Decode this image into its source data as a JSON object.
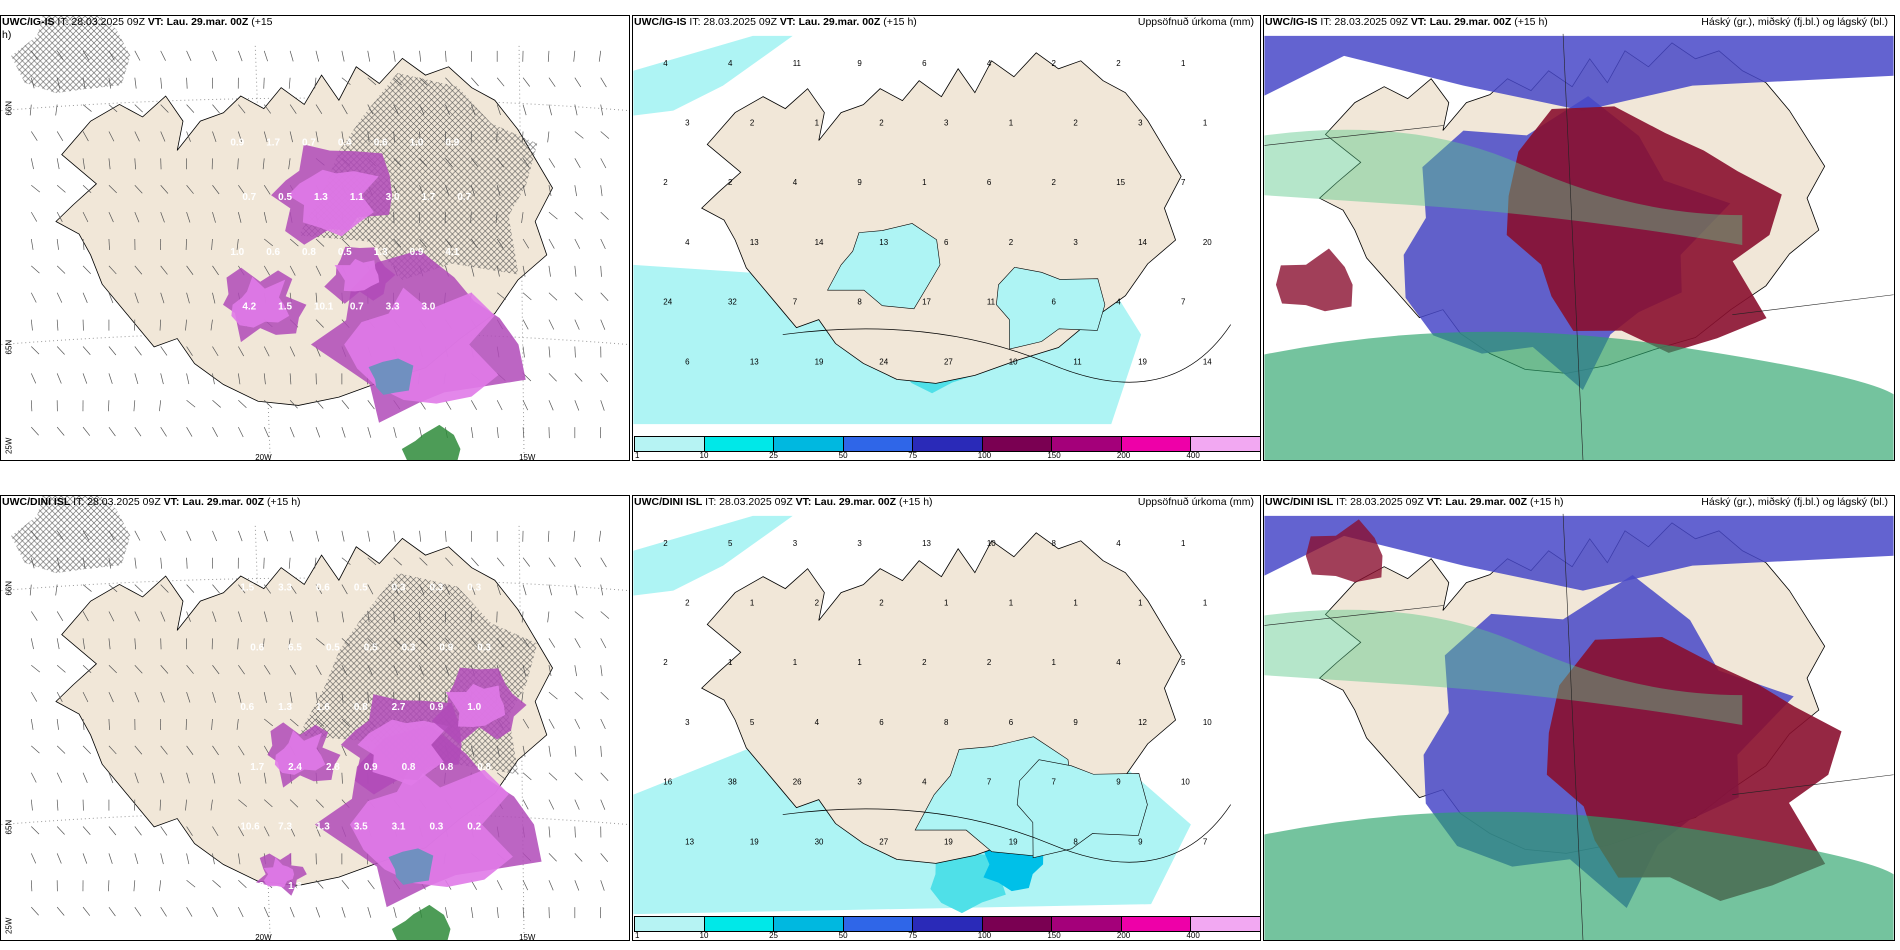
{
  "panels": {
    "top_left": {
      "title_bold": "UWC/IG-IS",
      "title_rest": " IT: 28.03.2025 09Z ",
      "vt_bold": "VT: Lau. 29.mar. 00Z",
      "lead": " (+15",
      "lead2": "h)",
      "values": [
        "0.9",
        "1.7",
        "0.7",
        "0.4",
        "0.6",
        "1.0",
        "0.9",
        "0.7",
        "0.5",
        "1.3",
        "1.1",
        "3.0",
        "1.7",
        "0.7",
        "1.0",
        "0.6",
        "0.8",
        "0.5",
        "1.3",
        "0.9",
        "4.1",
        "4.2",
        "1.5",
        "10.1",
        "0.7",
        "3.3",
        "3.0"
      ],
      "axis": [
        "66N",
        "65N",
        "25W",
        "20W",
        "15W"
      ]
    },
    "top_mid": {
      "title_bold": "UWC/IG-IS",
      "title_rest": " IT: 28.03.2025 09Z ",
      "vt_bold": "VT: Lau. 29.mar. 00Z",
      "lead": " (+15 h)",
      "right_title": "Uppsöfnuð úrkoma (mm)",
      "values": [
        "4",
        "4",
        "11",
        "9",
        "6",
        "4",
        "2",
        "2",
        "1",
        "3",
        "2",
        "1",
        "2",
        "3",
        "1",
        "2",
        "3",
        "1",
        "2",
        "2",
        "4",
        "9",
        "1",
        "6",
        "2",
        "15",
        "7",
        "4",
        "13",
        "14",
        "13",
        "6",
        "2",
        "3",
        "14",
        "20",
        "24",
        "32",
        "7",
        "8",
        "17",
        "11",
        "6",
        "4",
        "7",
        "6",
        "13",
        "19",
        "24",
        "27",
        "10",
        "11",
        "19",
        "14"
      ]
    },
    "top_right": {
      "title_bold": "UWC/IG-IS",
      "title_rest": " IT: 28.03.2025 09Z ",
      "vt_bold": "VT: Lau. 29.mar. 00Z",
      "lead": " (+15 h)",
      "right_title": "Háský (gr.), miðský (fj.bl.) og lágský (bl.)"
    },
    "bot_left": {
      "title_bold": "UWC/DINI ISL",
      "title_rest": " IT: 28.03.2025 09Z ",
      "vt_bold": "VT: Lau. 29.mar. 00Z",
      "lead": " (+15 h)",
      "values": [
        "1.5",
        "3.3",
        "0.6",
        "0.5",
        "0.3",
        "0.3",
        "0.3",
        "0.6",
        "6.5",
        "0.5",
        "0.5",
        "0.3",
        "0.9",
        "0.3",
        "0.6",
        "1.3",
        "1.6",
        "0.8",
        "2.7",
        "0.9",
        "1.0",
        "1.7",
        "2.4",
        "2.8",
        "0.9",
        "0.8",
        "0.8",
        "0.8",
        "10.6",
        "7.3",
        "1.3",
        "3.5",
        "3.1",
        "0.3",
        "0.2",
        "3.3",
        "1.8"
      ],
      "axis": [
        "66N",
        "65N",
        "25W",
        "20W",
        "15W"
      ]
    },
    "bot_mid": {
      "title_bold": "UWC/DINI ISL",
      "title_rest": " IT: 28.03.2025 09Z ",
      "vt_bold": "VT: Lau. 29.mar. 00Z",
      "lead": " (+15 h)",
      "right_title": "Uppsöfnuð úrkoma (mm)",
      "values": [
        "2",
        "5",
        "3",
        "3",
        "13",
        "10",
        "8",
        "4",
        "1",
        "2",
        "1",
        "2",
        "2",
        "1",
        "1",
        "1",
        "1",
        "1",
        "2",
        "1",
        "1",
        "1",
        "2",
        "2",
        "1",
        "4",
        "5",
        "3",
        "5",
        "4",
        "6",
        "8",
        "6",
        "9",
        "12",
        "10",
        "16",
        "38",
        "26",
        "3",
        "4",
        "7",
        "7",
        "9",
        "10",
        "13",
        "19",
        "30",
        "27",
        "19",
        "19",
        "8",
        "9",
        "7"
      ]
    },
    "bot_right": {
      "title_bold": "UWC/DINI ISL",
      "title_rest": " IT: 28.03.2025 09Z ",
      "vt_bold": "VT: Lau. 29.mar. 00Z",
      "lead": " (+15 h)",
      "right_title": "Háský (gr.), miðský (fj.bl.) og lágský (bl.)"
    }
  },
  "colorbar": {
    "labels": [
      "1",
      "10",
      "25",
      "50",
      "75",
      "100",
      "150",
      "200",
      "400"
    ],
    "colors": [
      "#b6f3f3",
      "#00e8e8",
      "#00b8e0",
      "#2f66e8",
      "#2a2ab8",
      "#7a0052",
      "#a4007a",
      "#ee00a8",
      "#f2a8f2"
    ]
  },
  "colors": {
    "land": "#f1e7d8",
    "precip_light": "#aef4f4",
    "high_cloud": "#2aa36a",
    "mid_cloud": "#4848c8",
    "low_cloud": "#8a0f2f",
    "wind": "#555555"
  }
}
